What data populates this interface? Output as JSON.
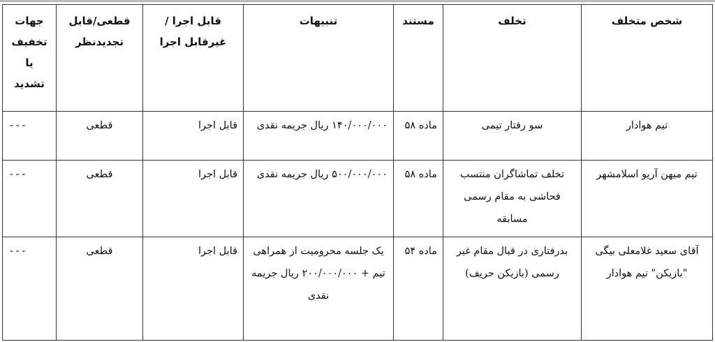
{
  "table": {
    "headers": [
      "شخص متخلف",
      "تخلف",
      "مستند",
      "تنبیهات",
      "قابل اجرا /غیرقابل اجرا",
      "قطعی/قابل تجدیدنظر",
      "جهات تخفیف یا تشدید"
    ],
    "rows": [
      [
        "تیم هوادار",
        "سو رفتار تیمی",
        "ماده ۵۸",
        "۱۴۰/۰۰۰/۰۰۰ ریال جریمه نقدی",
        "قابل اجرا",
        "قطعی",
        "---"
      ],
      [
        "تیم میهن آریو اسلامشهر",
        "تخلف تماشاگران منتسب فحاشی به مقام رسمی مسابقه",
        "ماده ۵۸",
        "۵۰۰/۰۰۰/۰۰۰ ریال جریمه نقدی",
        "قابل اجرا",
        "قطعی",
        "---"
      ],
      [
        "آقای سعید غلامعلی بیگی \"بازیکن\" تیم هوادار",
        "بدرفتاری در قبال مقام غیر رسمی (بازیکن حریف)",
        "ماده ۵۴",
        "یک جلسه محرومیت از همراهی تیم + ۲۰۰/۰۰۰/۰۰۰ ریال جریمه نقدی",
        "قابل اجرا",
        "قطعی",
        "---"
      ]
    ]
  }
}
